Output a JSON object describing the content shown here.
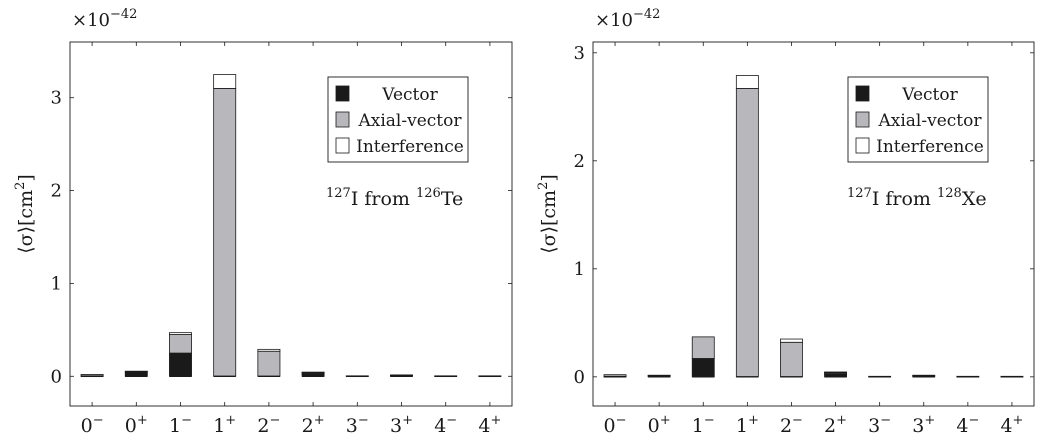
{
  "chart_data": [
    {
      "type": "bar",
      "stacked": true,
      "categories": [
        "0−",
        "0+",
        "1−",
        "1+",
        "2−",
        "2+",
        "3−",
        "3+",
        "4−",
        "4+"
      ],
      "category_parts": [
        [
          "0",
          "−"
        ],
        [
          "0",
          "+"
        ],
        [
          "1",
          "−"
        ],
        [
          "1",
          "+"
        ],
        [
          "2",
          "−"
        ],
        [
          "2",
          "+"
        ],
        [
          "3",
          "−"
        ],
        [
          "3",
          "+"
        ],
        [
          "4",
          "−"
        ],
        [
          "4",
          "+"
        ]
      ],
      "series": [
        {
          "name": "Vector",
          "color": "#1a1a1a",
          "values": [
            0.005,
            0.05,
            0.25,
            0.0,
            0.0,
            0.03,
            0.005,
            0.01,
            0.005,
            0.005
          ]
        },
        {
          "name": "Axial-vector",
          "color": "#b8b8bc",
          "values": [
            0.015,
            0.005,
            0.2,
            3.1,
            0.27,
            0.01,
            0.0,
            0.005,
            0.0,
            0.0
          ]
        },
        {
          "name": "Interference",
          "color": "#ffffff",
          "values": [
            0.0,
            0.0,
            0.02,
            0.15,
            0.02,
            0.005,
            0.0,
            0.0,
            0.0,
            0.0
          ]
        }
      ],
      "ylabel": "⟨σ⟩[cm²]",
      "ylabel_main": "⟨σ⟩[cm",
      "ylabel_sup": "2",
      "ylabel_close": "]",
      "scale_base": "×10",
      "scale_exp": "−42",
      "ylim": [
        -0.32,
        3.6
      ],
      "yticks": [
        "0",
        "1",
        "2",
        "3"
      ],
      "annotation": {
        "pre_sup": "127",
        "main": "I from ",
        "mid_sup": "126",
        "tail": "Te"
      },
      "legend_position": "top-right"
    },
    {
      "type": "bar",
      "stacked": true,
      "categories": [
        "0−",
        "0+",
        "1−",
        "1+",
        "2−",
        "2+",
        "3−",
        "3+",
        "4−",
        "4+"
      ],
      "category_parts": [
        [
          "0",
          "−"
        ],
        [
          "0",
          "+"
        ],
        [
          "1",
          "−"
        ],
        [
          "1",
          "+"
        ],
        [
          "2",
          "−"
        ],
        [
          "2",
          "+"
        ],
        [
          "3",
          "−"
        ],
        [
          "3",
          "+"
        ],
        [
          "4",
          "−"
        ],
        [
          "4",
          "+"
        ]
      ],
      "series": [
        {
          "name": "Vector",
          "color": "#1a1a1a",
          "values": [
            0.005,
            0.01,
            0.17,
            0.0,
            0.0,
            0.03,
            0.005,
            0.01,
            0.005,
            0.005
          ]
        },
        {
          "name": "Axial-vector",
          "color": "#b8b8bc",
          "values": [
            0.015,
            0.005,
            0.2,
            2.67,
            0.32,
            0.01,
            0.0,
            0.005,
            0.0,
            0.0
          ]
        },
        {
          "name": "Interference",
          "color": "#ffffff",
          "values": [
            0.0,
            0.0,
            0.0,
            0.12,
            0.03,
            0.005,
            0.0,
            0.0,
            0.0,
            0.0
          ]
        }
      ],
      "ylabel": "⟨σ⟩[cm²]",
      "ylabel_main": "⟨σ⟩[cm",
      "ylabel_sup": "2",
      "ylabel_close": "]",
      "scale_base": "×10",
      "scale_exp": "−42",
      "ylim": [
        -0.27,
        3.1
      ],
      "yticks": [
        "0",
        "1",
        "2",
        "3"
      ],
      "annotation": {
        "pre_sup": "127",
        "main": "I from ",
        "mid_sup": "128",
        "tail": "Xe"
      },
      "legend_position": "top-right"
    }
  ]
}
